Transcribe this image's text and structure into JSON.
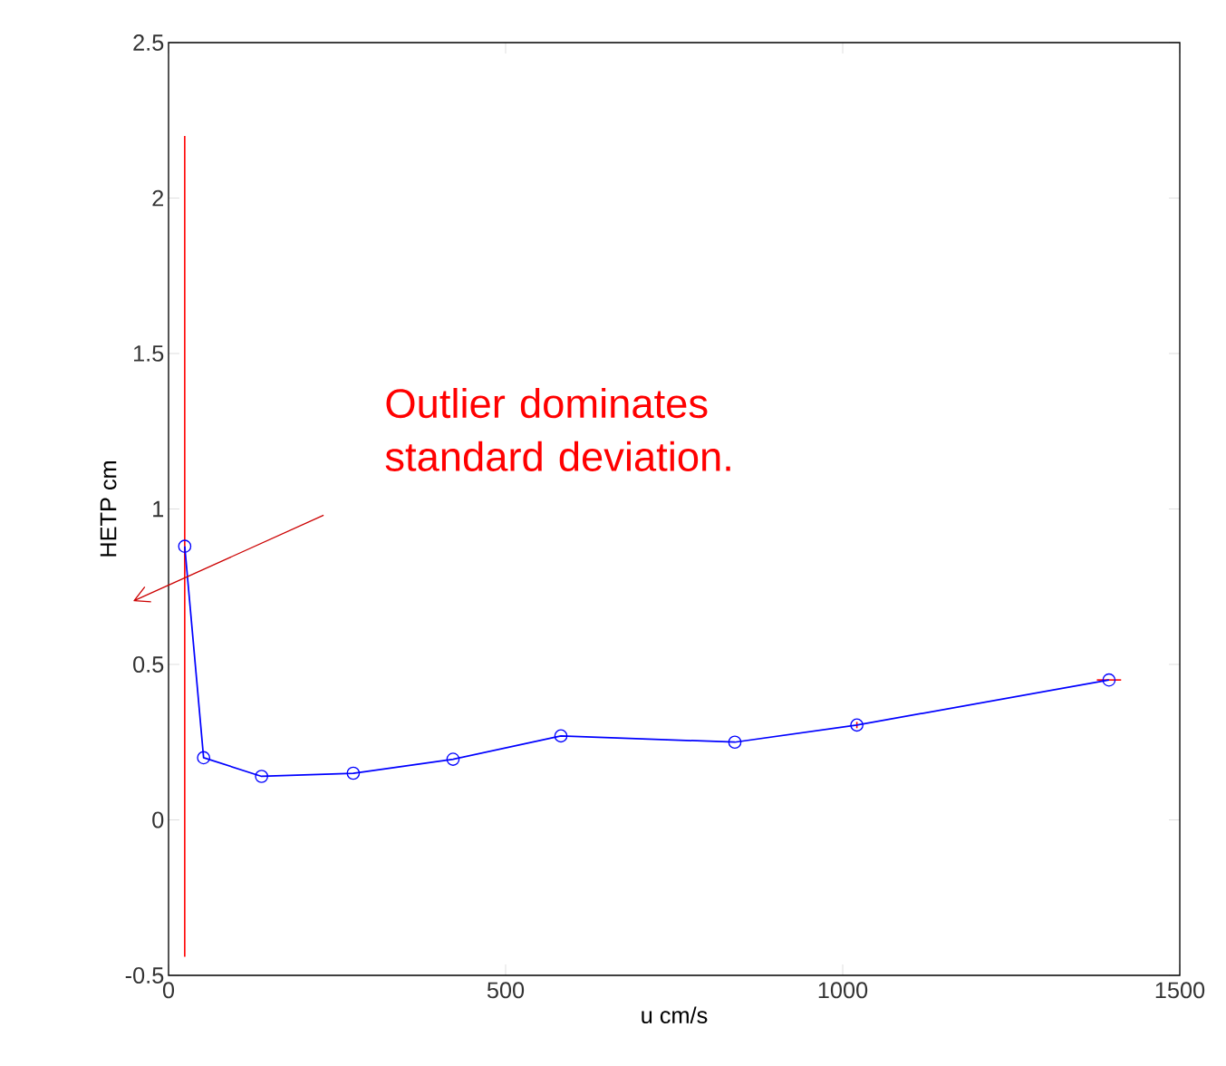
{
  "chart_data": {
    "type": "line",
    "xlabel": "u cm/s",
    "ylabel": "HETP cm",
    "x": [
      24,
      52,
      138,
      274,
      422,
      582,
      840,
      1021,
      1395
    ],
    "series": [
      {
        "color": "#0000ff",
        "values": [
          0.88,
          0.2,
          0.14,
          0.15,
          0.195,
          0.27,
          0.25,
          0.305,
          0.45
        ],
        "errors": [
          1.32,
          null,
          null,
          null,
          null,
          null,
          null,
          0.01,
          null
        ],
        "xerrors": [
          null,
          null,
          null,
          null,
          null,
          null,
          null,
          null,
          18
        ]
      }
    ],
    "marker": "circle",
    "line_style": "solid",
    "xlim": [
      0,
      1500
    ],
    "ylim": [
      -0.5,
      2.5
    ],
    "xticks": [
      0,
      500,
      1000,
      1500
    ],
    "yticks": [
      -0.5,
      0,
      0.5,
      1,
      1.5,
      2,
      2.5
    ],
    "annotations": [
      "Outlier dominates standard deviation."
    ]
  }
}
